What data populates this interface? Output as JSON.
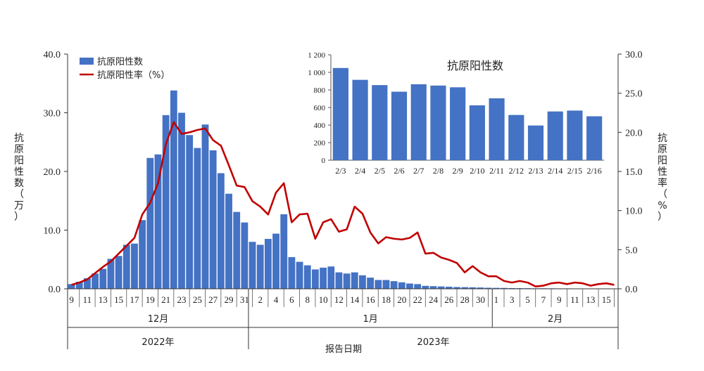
{
  "chart_data": [
    {
      "type": "bar+line",
      "series": [
        {
          "name": "抗原阳性数",
          "axis": "left",
          "color": "#4472C4",
          "values": [
            0.8,
            1.2,
            1.8,
            2.6,
            3.4,
            5.1,
            5.6,
            7.5,
            7.7,
            11.7,
            22.3,
            22.9,
            29.6,
            33.8,
            30.0,
            26.2,
            24.0,
            28.0,
            23.6,
            19.7,
            16.2,
            13.1,
            11.3,
            8.0,
            7.5,
            8.5,
            9.4,
            12.7,
            5.4,
            4.6,
            4.0,
            3.3,
            3.6,
            3.8,
            2.8,
            2.6,
            2.8,
            2.3,
            1.9,
            1.5,
            1.5,
            1.3,
            1.1,
            0.9,
            0.8,
            0.5,
            0.45,
            0.4,
            0.35,
            0.3,
            0.28,
            0.25,
            0.22,
            0.18,
            0.16,
            0.15,
            0.12,
            0.11,
            0.1,
            0.09,
            0.09,
            0.08,
            0.07,
            0.07,
            0.06,
            0.06,
            0.05,
            0.05,
            0.05,
            0.04
          ]
        },
        {
          "name": "抗原阳性率（%）",
          "axis": "right",
          "color": "#C00000",
          "values": [
            0.5,
            0.8,
            1.2,
            2.0,
            2.8,
            3.5,
            4.5,
            5.5,
            6.5,
            9.5,
            11.0,
            13.5,
            18.5,
            21.3,
            19.8,
            20.0,
            20.3,
            20.5,
            19.0,
            18.3,
            15.8,
            13.2,
            13.0,
            11.2,
            10.5,
            9.5,
            12.3,
            13.5,
            8.5,
            9.5,
            9.6,
            6.4,
            8.5,
            8.9,
            7.3,
            7.6,
            10.5,
            9.6,
            7.2,
            5.8,
            6.6,
            6.4,
            6.3,
            6.5,
            7.2,
            4.5,
            4.6,
            4.0,
            3.7,
            3.3,
            2.1,
            2.9,
            2.1,
            1.6,
            1.6,
            1.0,
            0.8,
            1.0,
            0.8,
            0.3,
            0.4,
            0.7,
            0.8,
            0.6,
            0.8,
            0.7,
            0.4,
            0.6,
            0.7,
            0.5
          ]
        }
      ],
      "x_tick_labels": [
        "9",
        "11",
        "13",
        "15",
        "17",
        "19",
        "21",
        "23",
        "25",
        "27",
        "29",
        "31",
        "2",
        "4",
        "6",
        "8",
        "10",
        "12",
        "14",
        "16",
        "18",
        "20",
        "22",
        "24",
        "26",
        "28",
        "30",
        "1",
        "3",
        "5",
        "7",
        "9",
        "11",
        "13",
        "15"
      ],
      "month_labels": [
        "12月",
        "1月",
        "2月"
      ],
      "year_labels": [
        "2022年",
        "2023年"
      ],
      "xlabel": "报告日期",
      "ylabel_left": [
        "抗",
        "原",
        "阳",
        "性",
        "数",
        "（",
        "万",
        "）"
      ],
      "ylabel_right": [
        "抗",
        "原",
        "阳",
        "性",
        "率",
        "（",
        "%",
        "）"
      ],
      "y_left_ticks": [
        "0.0",
        "10.0",
        "20.0",
        "30.0",
        "40.0"
      ],
      "ylim_left": [
        0,
        40
      ],
      "y_right_ticks": [
        "0.0",
        "5.0",
        "10.0",
        "15.0",
        "20.0",
        "25.0",
        "30.0"
      ],
      "ylim_right": [
        0,
        30
      ],
      "legend_position": "top-left"
    },
    {
      "type": "bar",
      "title": "抗原阳性数",
      "color": "#4472C4",
      "categories": [
        "2/3",
        "2/4",
        "2/5",
        "2/6",
        "2/7",
        "2/8",
        "2/9",
        "2/10",
        "2/11",
        "2/12",
        "2/13",
        "2/14",
        "2/15",
        "2/16"
      ],
      "values": [
        1050,
        915,
        855,
        780,
        865,
        850,
        830,
        625,
        705,
        515,
        395,
        555,
        565,
        500
      ],
      "y_ticks": [
        "0",
        "200",
        "400",
        "600",
        "800",
        "1 000",
        "1 200"
      ],
      "ylim": [
        0,
        1200
      ]
    }
  ]
}
